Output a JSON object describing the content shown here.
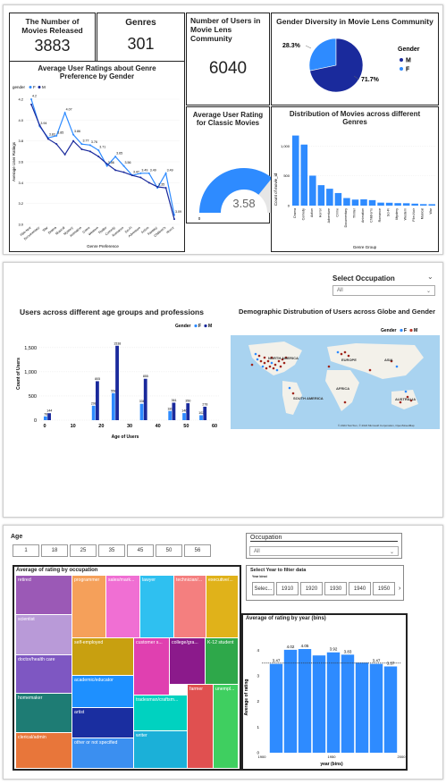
{
  "p1": {
    "movies_title": "The Number of Movies Released",
    "movies_value": "3883",
    "genres_title": "Genres",
    "genres_value": "301",
    "users_title": "Number of Users in Movie Lens Community",
    "users_value": "6040",
    "gender_title": "Gender Diversity in Movie Lens Community",
    "gender_legend_title": "Gender",
    "gender_m": "M",
    "gender_f": "F",
    "pct_f": "28.3%",
    "pct_m": "71.7%",
    "avg_title": "Average User Ratings about Genre Preference by Gender",
    "avg_legend": "gender",
    "avg_f": "F",
    "avg_m": "M",
    "avg_ylabel": "Average User Ratings",
    "avg_xlabel": "Genre Preference",
    "classic_title": "Average User Rating for Classic Movies",
    "classic_value": "3.58",
    "gauge_min": "0",
    "gauge_max": "5",
    "dist_title": "Distribution of Movies across different Genres",
    "dist_ylabel": "Count of movie_id",
    "dist_xlabel": "Genre Group"
  },
  "p2": {
    "select_title": "Select Occupation",
    "select_value": "All",
    "age_title": "Users across different age groups and professions",
    "legend_title": "Gender",
    "legend_f": "F",
    "legend_m": "M",
    "ylabel": "Count of Users",
    "xlabel": "Age of Users",
    "map_title": "Demographic Distrubution of Users across Globe and Gender",
    "map_legend": "Gender",
    "map_f": "F",
    "map_m": "M",
    "na": "NORTH AMERICA",
    "eu": "EUROPE",
    "asia": "ASIA",
    "sa": "SOUTH AMERICA",
    "af": "AFRICA",
    "au": "AUSTRALIA",
    "map_credit": "© 2024 TomTom, © 2024 Microsoft Corporation, OpenStreetMap"
  },
  "p3": {
    "age_label": "Age",
    "age_buttons": [
      "1",
      "18",
      "25",
      "35",
      "45",
      "50",
      "56"
    ],
    "occ_label": "Occupation",
    "occ_value": "All",
    "treemap_title": "Average of rating by occupation",
    "year_filter_title": "Select Year to filter data",
    "year_sub": "Year binst",
    "year_buttons": [
      "Selec...",
      "1910",
      "1920",
      "1930",
      "1940",
      "1950"
    ],
    "year_chart_title": "Average of rating by year (bins)",
    "year_ylabel": "Average of rating",
    "year_xlabel": "year (bins)",
    "treemap": [
      {
        "label": "retired",
        "color": "#9b59b6"
      },
      {
        "label": "scientist",
        "color": "#b99ad8"
      },
      {
        "label": "doctor/health care",
        "color": "#7e57c2"
      },
      {
        "label": "homemaker",
        "color": "#1e7c74"
      },
      {
        "label": "clerical/admin",
        "color": "#e8763a"
      },
      {
        "label": "programmer",
        "color": "#f5a05a"
      },
      {
        "label": "sales/mark...",
        "color": "#f06fd3"
      },
      {
        "label": "lawyer",
        "color": "#2fc0f0"
      },
      {
        "label": "technician/...",
        "color": "#f47f7f"
      },
      {
        "label": "executive/...",
        "color": "#e0b21a"
      },
      {
        "label": "self-employed",
        "color": "#c8a010"
      },
      {
        "label": "customer s...",
        "color": "#e040b0"
      },
      {
        "label": "college/gra...",
        "color": "#8b1a8b"
      },
      {
        "label": "K-12 student",
        "color": "#2ea84a"
      },
      {
        "label": "academic/educator",
        "color": "#1e90ff"
      },
      {
        "label": "artist",
        "color": "#1a2ea0"
      },
      {
        "label": "tradesman/craftsm...",
        "color": "#00d2c0"
      },
      {
        "label": "farmer",
        "color": "#e05050"
      },
      {
        "label": "unempl...",
        "color": "#3fcf60"
      },
      {
        "label": "other or not specified",
        "color": "#3b8ff0"
      },
      {
        "label": "writer",
        "color": "#1bb0d8"
      }
    ]
  },
  "chart_data": [
    {
      "type": "line",
      "title": "Average User Ratings about Genre Preference by Gender",
      "xlabel": "Genre Preference",
      "ylabel": "Average User Ratings",
      "categories": [
        "Film-Noir",
        "Documentary",
        "War",
        "Drama",
        "Musical",
        "Mystery",
        "Animation",
        "Crime",
        "Western",
        "Thriller",
        "Comedy",
        "Romance",
        "Sci-Fi",
        "Adventure",
        "Action",
        "Fantasy",
        "Children's",
        "Horror"
      ],
      "ylim": [
        3.0,
        4.2
      ],
      "series": [
        {
          "name": "F",
          "values": [
            4.2,
            3.94,
            3.83,
            3.85,
            4.07,
            3.86,
            3.77,
            3.76,
            3.71,
            3.56,
            3.65,
            3.56,
            3.47,
            3.49,
            3.49,
            3.35,
            3.49,
            3.09
          ]
        },
        {
          "name": "M",
          "values": [
            4.15,
            3.95,
            3.82,
            3.77,
            3.67,
            3.8,
            3.72,
            3.7,
            3.65,
            3.58,
            3.52,
            3.5,
            3.47,
            3.45,
            3.4,
            3.36,
            3.35,
            3.05
          ]
        }
      ],
      "point_labels": [
        "4.2",
        "3.94",
        "3.83",
        "3.85",
        "4.07",
        "3.86",
        "3.77",
        "3.76",
        "3.71",
        "3.56",
        "3.65",
        "3.56",
        "3.47",
        "3.49",
        "3.49",
        "3.35",
        "3.49",
        "3.09"
      ]
    },
    {
      "type": "pie",
      "title": "Gender Diversity in Movie Lens Community",
      "categories": [
        "M",
        "F"
      ],
      "values": [
        71.7,
        28.3
      ]
    },
    {
      "type": "bar",
      "title": "Distribution of Movies across different Genres",
      "xlabel": "Genre Group",
      "ylabel": "Count of movie_id",
      "categories": [
        "Drama",
        "Comedy",
        "Action",
        "Horror",
        "Adventure",
        "Crime",
        "Documentary",
        "Thriller",
        "Animation",
        "Children's",
        "Romance",
        "Sci-Fi",
        "Mystery",
        "Western",
        "Film-Noir",
        "Musical",
        "War"
      ],
      "values": [
        1176,
        1024,
        503,
        343,
        283,
        211,
        127,
        101,
        105,
        92,
        50,
        48,
        42,
        40,
        33,
        25,
        24
      ],
      "ylim": [
        0,
        1200
      ],
      "yticks": [
        "1,000",
        "500",
        "0"
      ]
    },
    {
      "type": "bar",
      "title": "Users across different age groups and professions",
      "xlabel": "Age of Users",
      "ylabel": "Count of Users",
      "categories": [
        "1",
        "18",
        "25",
        "35",
        "45",
        "50",
        "56"
      ],
      "series": [
        {
          "name": "F",
          "values": [
            78,
            298,
            558,
            338,
            189,
            146,
            102
          ]
        },
        {
          "name": "M",
          "values": [
            144,
            805,
            1538,
            855,
            361,
            350,
            278
          ]
        }
      ],
      "xticks": [
        "0",
        "10",
        "20",
        "30",
        "40",
        "50",
        "60"
      ],
      "yticks": [
        "1,500",
        "1,000",
        "500",
        "0"
      ]
    },
    {
      "type": "bar",
      "title": "Average of rating by year (bins)",
      "xlabel": "year (bins)",
      "ylabel": "Average of rating",
      "categories": [
        "1920",
        "1930",
        "1940",
        "1950",
        "1960",
        "1970",
        "1980",
        "1990",
        "2000"
      ],
      "values": [
        3.47,
        4.02,
        4.05,
        3.8,
        3.92,
        3.83,
        3.52,
        3.47,
        3.37
      ],
      "labels": [
        "3.47",
        "4.02",
        "4.05",
        "",
        "3.92",
        "3.83",
        "",
        "3.47",
        "3.37"
      ],
      "xticks": [
        "1900",
        "1950",
        "2000"
      ],
      "yticks": [
        "4",
        "3",
        "2",
        "1",
        "0"
      ]
    }
  ]
}
